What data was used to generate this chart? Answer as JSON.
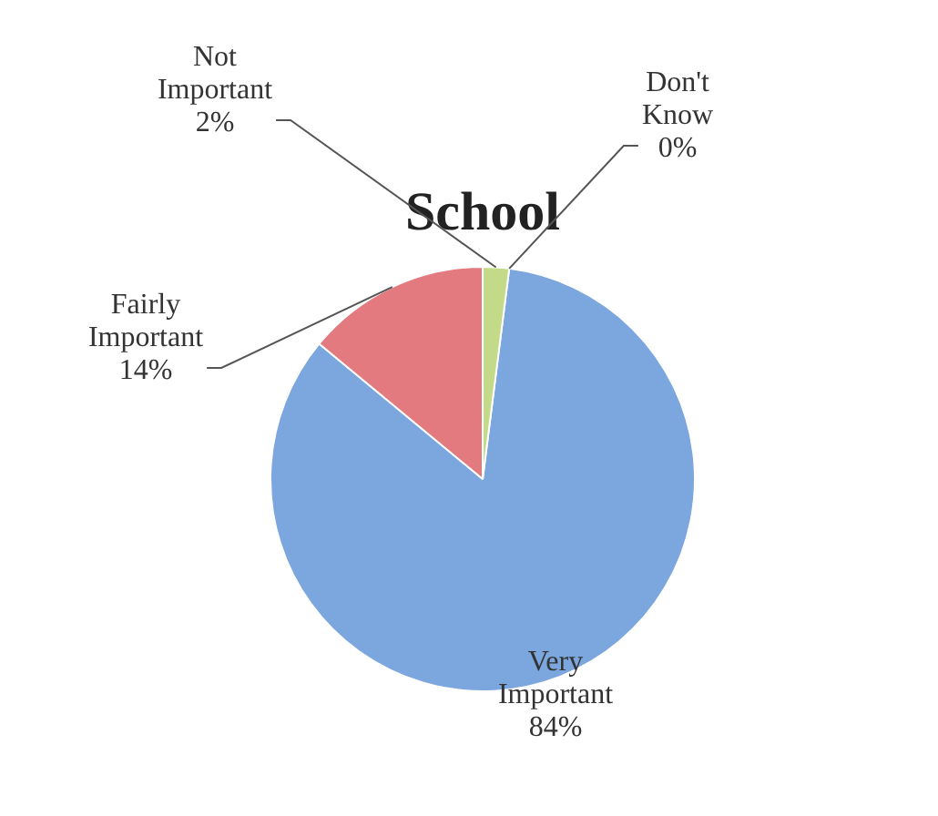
{
  "chart_data": {
    "type": "pie",
    "title": "School",
    "categories": [
      "Very Important",
      "Fairly Important",
      "Not Important",
      "Don't Know"
    ],
    "values": [
      84,
      14,
      2,
      0
    ],
    "value_labels": [
      "84%",
      "14%",
      "2%",
      "0%"
    ],
    "colors": [
      "#7ba6de",
      "#e27a80",
      "#c3da88",
      "#9a7fc0"
    ],
    "legend": false
  }
}
